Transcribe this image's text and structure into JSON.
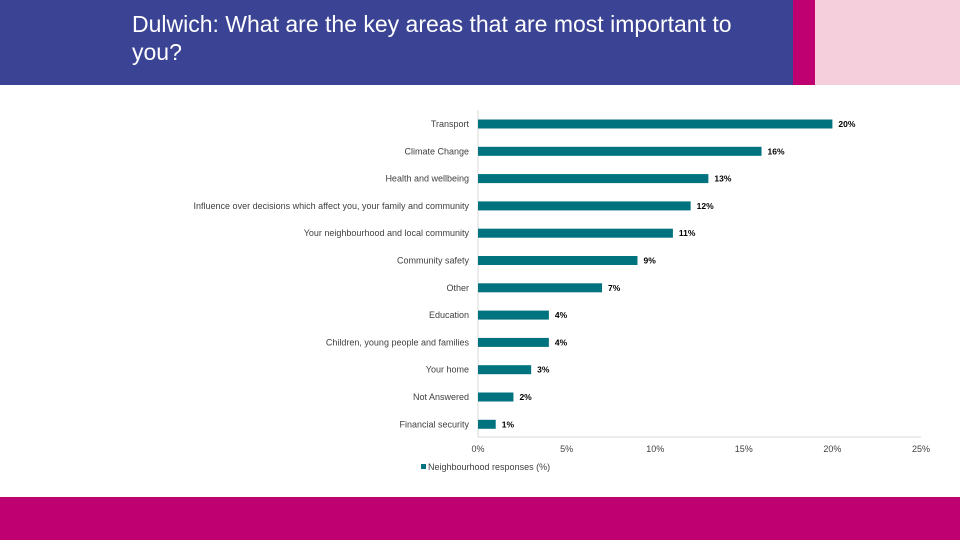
{
  "header": {
    "title": "Dulwich: What are the key areas that are most important to you?"
  },
  "colors": {
    "header_blue": "#3b4395",
    "accent_magenta": "#be0070",
    "accent_pink": "#f6cfdc",
    "bar": "#00737f"
  },
  "chart_data": {
    "type": "bar",
    "orientation": "horizontal",
    "categories": [
      "Transport",
      "Climate Change",
      "Health and wellbeing",
      "Influence over decisions which affect you, your family and community",
      "Your neighbourhood and local community",
      "Community safety",
      "Other",
      "Education",
      "Children, young people and families",
      "Your home",
      "Not Answered",
      "Financial security"
    ],
    "series": [
      {
        "name": "Neighbourhood responses (%)",
        "values": [
          20,
          16,
          13,
          12,
          11,
          9,
          7,
          4,
          4,
          3,
          2,
          1
        ]
      }
    ],
    "data_labels": [
      "20%",
      "16%",
      "13%",
      "12%",
      "11%",
      "9%",
      "7%",
      "4%",
      "4%",
      "3%",
      "2%",
      "1%"
    ],
    "xlim": [
      0,
      25
    ],
    "xticks": [
      "0%",
      "5%",
      "10%",
      "15%",
      "20%",
      "25%"
    ],
    "grid": false,
    "legend": "bottom"
  }
}
